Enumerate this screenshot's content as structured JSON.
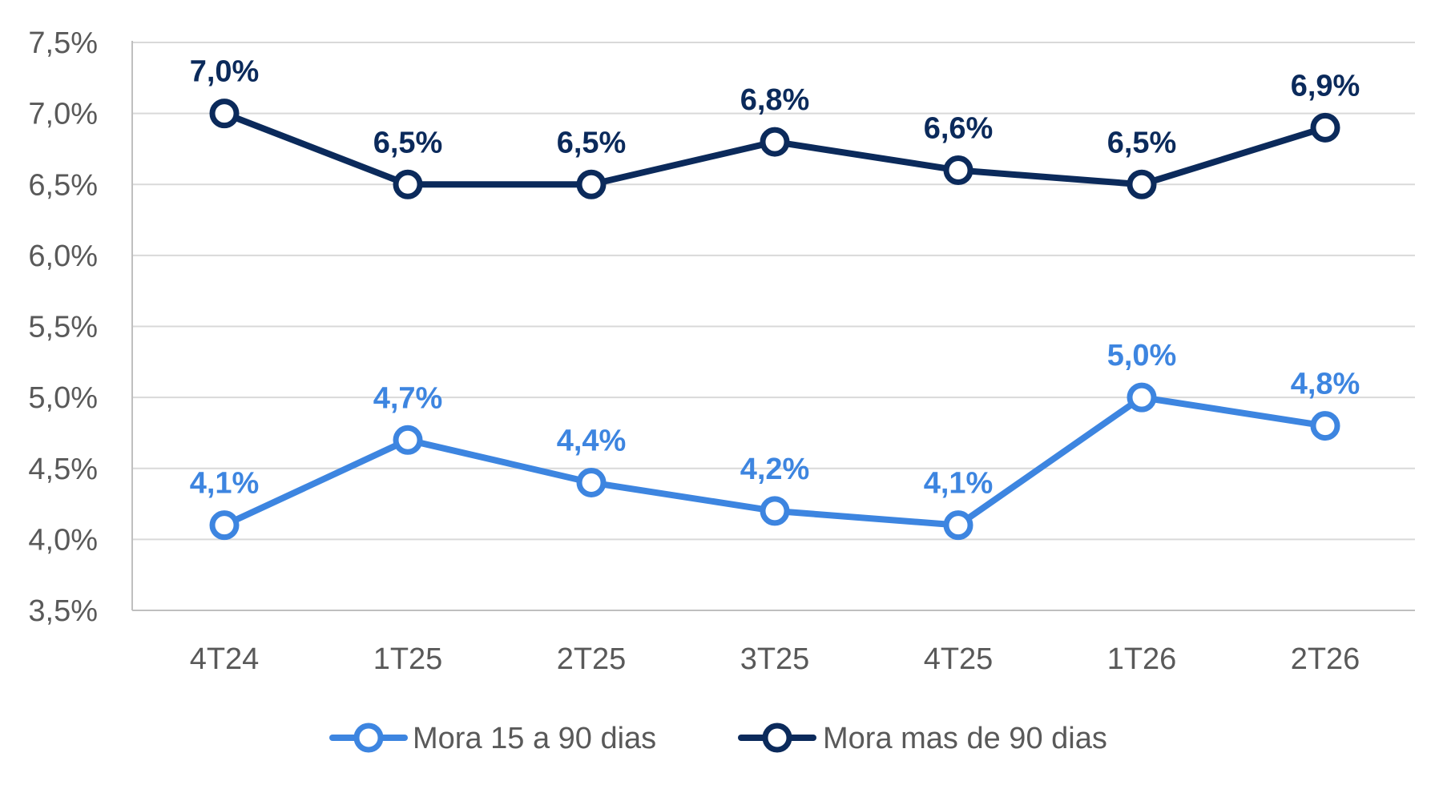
{
  "chart_data": {
    "type": "line",
    "title": "",
    "xlabel": "",
    "ylabel": "",
    "categories": [
      "4T24",
      "1T25",
      "2T25",
      "3T25",
      "4T25",
      "1T26",
      "2T26"
    ],
    "ylim": [
      3.5,
      7.5
    ],
    "yticks": [
      3.5,
      4.0,
      4.5,
      5.0,
      5.5,
      6.0,
      6.5,
      7.0,
      7.5
    ],
    "ytick_labels": [
      "3,5%",
      "4,0%",
      "4,5%",
      "5,0%",
      "5,5%",
      "6,0%",
      "6,5%",
      "7,0%",
      "7,5%"
    ],
    "grid": "horizontal",
    "legend_position": "bottom",
    "series": [
      {
        "name": "Mora 15 a 90 dias",
        "color": "#3D85E0",
        "values": [
          4.1,
          4.7,
          4.4,
          4.2,
          4.1,
          5.0,
          4.8
        ],
        "labels": [
          "4,1%",
          "4,7%",
          "4,4%",
          "4,2%",
          "4,1%",
          "5,0%",
          "4,8%"
        ]
      },
      {
        "name": "Mora mas de 90 dias",
        "color": "#0B2A5B",
        "values": [
          7.0,
          6.5,
          6.5,
          6.8,
          6.6,
          6.5,
          6.9
        ],
        "labels": [
          "7,0%",
          "6,5%",
          "6,5%",
          "6,8%",
          "6,6%",
          "6,5%",
          "6,9%"
        ]
      }
    ]
  }
}
